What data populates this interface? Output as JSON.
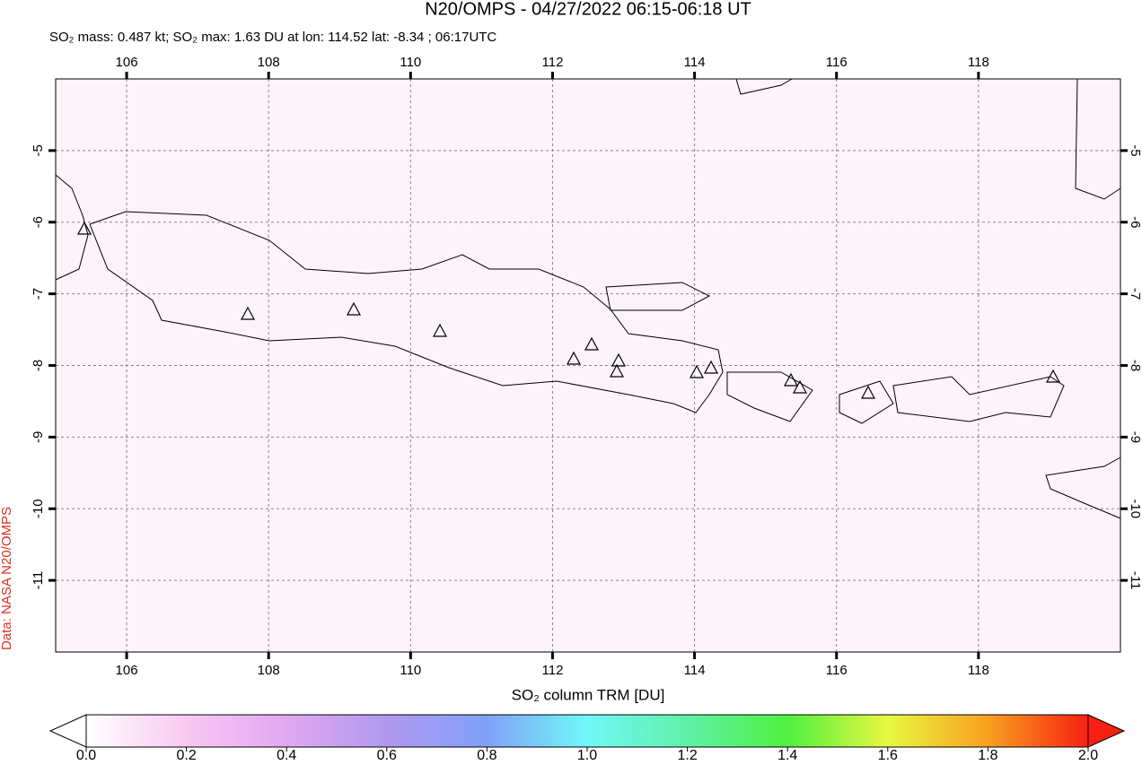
{
  "map": {
    "title": "N20/OMPS - 04/27/2022 06:15-06:18 UT",
    "subtitle": "SO₂ mass: 0.487 kt; SO₂ max: 1.63 DU at lon: 114.52 lat: -8.34 ; 06:17UTC",
    "credit": "Data: NASA N20/OMPS",
    "xlim": [
      105,
      120
    ],
    "ylim": [
      -12,
      -4
    ],
    "xticks": [
      106,
      108,
      110,
      112,
      114,
      116,
      118
    ],
    "yticks": [
      -5,
      -6,
      -7,
      -8,
      -9,
      -10,
      -11
    ],
    "colorbar": {
      "label": "SO₂ column TRM [DU]",
      "lim": [
        0,
        2
      ],
      "ticks": [
        {
          "value": 0,
          "label": "0.0"
        },
        {
          "value": 0.2,
          "label": "0.2"
        },
        {
          "value": 0.4,
          "label": "0.4"
        },
        {
          "value": 0.6,
          "label": "0.6"
        },
        {
          "value": 0.8,
          "label": "0.8"
        },
        {
          "value": 1,
          "label": "1.0"
        },
        {
          "value": 1.2,
          "label": "1.2"
        },
        {
          "value": 1.4,
          "label": "1.4"
        },
        {
          "value": 1.6,
          "label": "1.6"
        },
        {
          "value": 1.8,
          "label": "1.8"
        },
        {
          "value": 2,
          "label": "2.0"
        }
      ]
    }
  }
}
